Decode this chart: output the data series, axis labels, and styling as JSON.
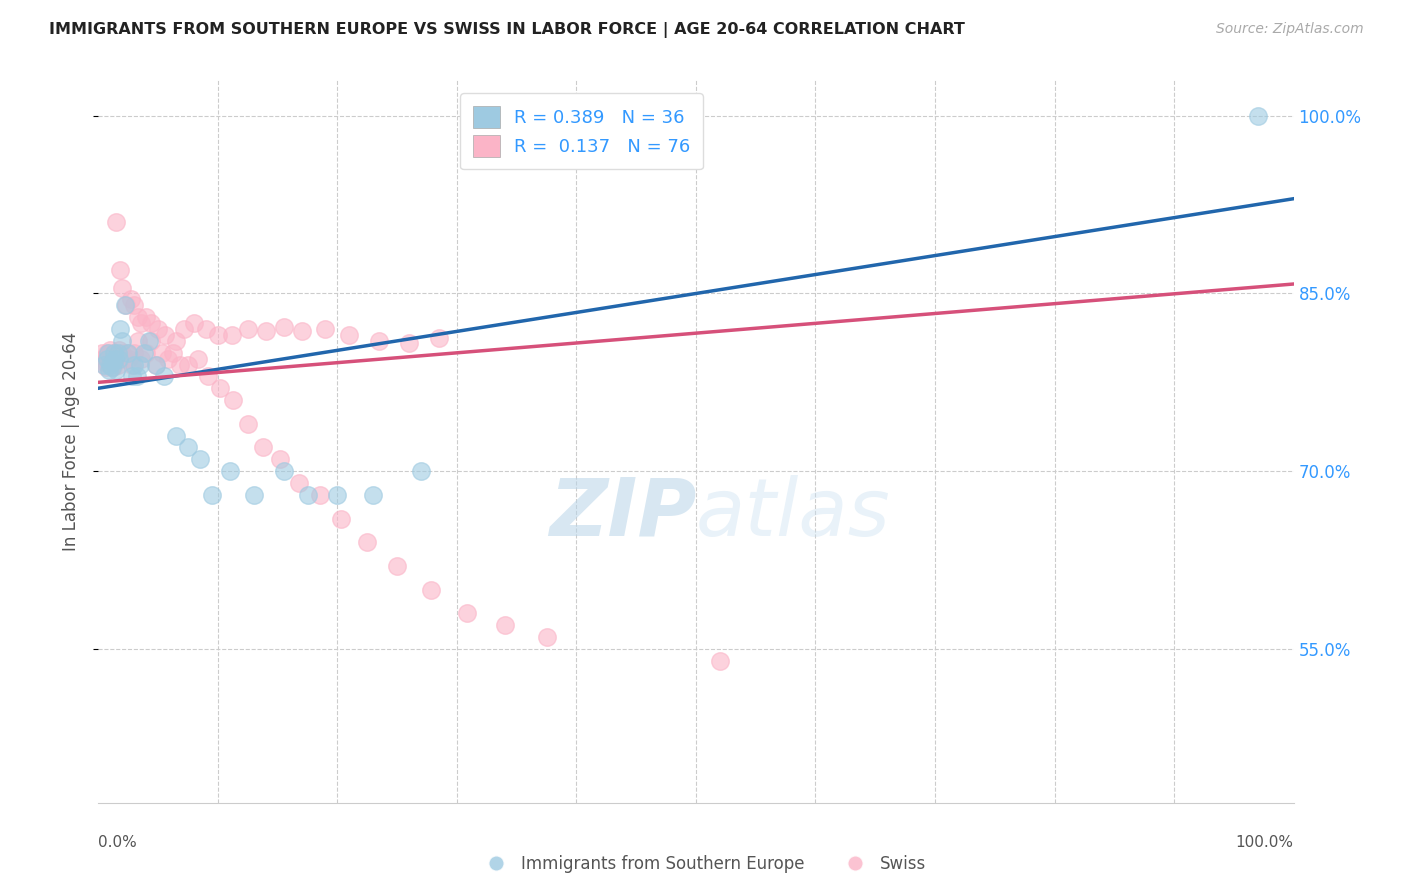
{
  "title": "IMMIGRANTS FROM SOUTHERN EUROPE VS SWISS IN LABOR FORCE | AGE 20-64 CORRELATION CHART",
  "source": "Source: ZipAtlas.com",
  "ylabel": "In Labor Force | Age 20-64",
  "ytick_labels": [
    "100.0%",
    "85.0%",
    "70.0%",
    "55.0%"
  ],
  "ytick_values": [
    1.0,
    0.85,
    0.7,
    0.55
  ],
  "xlim": [
    0.0,
    1.0
  ],
  "ylim": [
    0.42,
    1.03
  ],
  "legend_R_blue": "0.389",
  "legend_N_blue": "36",
  "legend_R_pink": "0.137",
  "legend_N_pink": "76",
  "blue_color": "#9ecae1",
  "pink_color": "#fbb4c7",
  "blue_line_color": "#2166ac",
  "pink_line_color": "#d6507a",
  "watermark_zip": "ZIP",
  "watermark_atlas": "atlas",
  "blue_scatter_x": [
    0.005,
    0.007,
    0.008,
    0.009,
    0.01,
    0.011,
    0.012,
    0.013,
    0.014,
    0.015,
    0.016,
    0.017,
    0.018,
    0.02,
    0.022,
    0.025,
    0.028,
    0.03,
    0.032,
    0.035,
    0.038,
    0.042,
    0.048,
    0.055,
    0.065,
    0.075,
    0.085,
    0.095,
    0.11,
    0.13,
    0.155,
    0.175,
    0.2,
    0.23,
    0.27,
    0.97
  ],
  "blue_scatter_y": [
    0.79,
    0.795,
    0.8,
    0.785,
    0.79,
    0.788,
    0.792,
    0.8,
    0.795,
    0.785,
    0.8,
    0.795,
    0.82,
    0.81,
    0.84,
    0.8,
    0.78,
    0.79,
    0.78,
    0.79,
    0.8,
    0.81,
    0.79,
    0.78,
    0.73,
    0.72,
    0.71,
    0.68,
    0.7,
    0.68,
    0.7,
    0.68,
    0.68,
    0.68,
    0.7,
    1.0
  ],
  "pink_scatter_x": [
    0.003,
    0.004,
    0.005,
    0.006,
    0.007,
    0.008,
    0.009,
    0.01,
    0.011,
    0.012,
    0.013,
    0.014,
    0.015,
    0.016,
    0.017,
    0.018,
    0.02,
    0.022,
    0.024,
    0.026,
    0.028,
    0.03,
    0.033,
    0.036,
    0.04,
    0.044,
    0.048,
    0.053,
    0.058,
    0.065,
    0.072,
    0.08,
    0.09,
    0.1,
    0.112,
    0.125,
    0.14,
    0.155,
    0.17,
    0.19,
    0.21,
    0.235,
    0.26,
    0.285,
    0.015,
    0.018,
    0.02,
    0.023,
    0.027,
    0.03,
    0.033,
    0.036,
    0.04,
    0.044,
    0.05,
    0.056,
    0.062,
    0.068,
    0.075,
    0.083,
    0.092,
    0.102,
    0.113,
    0.125,
    0.138,
    0.152,
    0.168,
    0.185,
    0.203,
    0.225,
    0.25,
    0.278,
    0.308,
    0.34,
    0.375,
    0.52
  ],
  "pink_scatter_y": [
    0.8,
    0.795,
    0.792,
    0.788,
    0.8,
    0.795,
    0.79,
    0.802,
    0.795,
    0.788,
    0.8,
    0.795,
    0.798,
    0.79,
    0.802,
    0.795,
    0.8,
    0.795,
    0.8,
    0.795,
    0.79,
    0.8,
    0.81,
    0.795,
    0.8,
    0.81,
    0.79,
    0.8,
    0.795,
    0.81,
    0.82,
    0.825,
    0.82,
    0.815,
    0.815,
    0.82,
    0.818,
    0.822,
    0.818,
    0.82,
    0.815,
    0.81,
    0.808,
    0.812,
    0.91,
    0.87,
    0.855,
    0.84,
    0.845,
    0.84,
    0.83,
    0.825,
    0.83,
    0.825,
    0.82,
    0.815,
    0.8,
    0.79,
    0.79,
    0.795,
    0.78,
    0.77,
    0.76,
    0.74,
    0.72,
    0.71,
    0.69,
    0.68,
    0.66,
    0.64,
    0.62,
    0.6,
    0.58,
    0.57,
    0.56,
    0.54
  ]
}
